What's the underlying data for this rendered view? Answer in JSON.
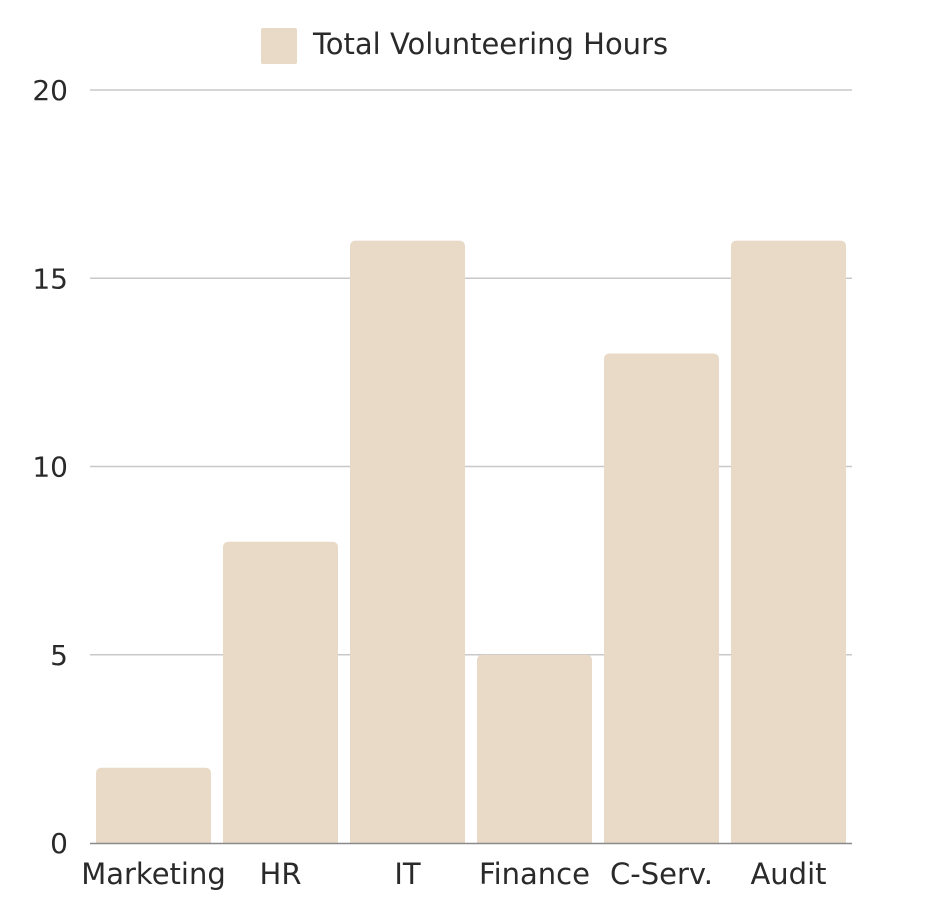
{
  "chart_data": {
    "type": "bar",
    "categories": [
      "Marketing",
      "HR",
      "IT",
      "Finance",
      "C-Serv.",
      "Audit"
    ],
    "series": [
      {
        "name": "Total Volunteering Hours",
        "values": [
          2,
          8,
          16,
          5,
          13,
          16
        ]
      }
    ],
    "title": "",
    "xlabel": "",
    "ylabel": "",
    "ylim": [
      0,
      20
    ],
    "yticks": [
      0,
      5,
      10,
      15,
      20
    ],
    "grid": true,
    "legend_position": "top-center",
    "colors": {
      "bar": "#E8DAC7",
      "grid": "#c8c8c8",
      "axis": "#8a8a8a",
      "text": "#2a2a2a"
    }
  }
}
